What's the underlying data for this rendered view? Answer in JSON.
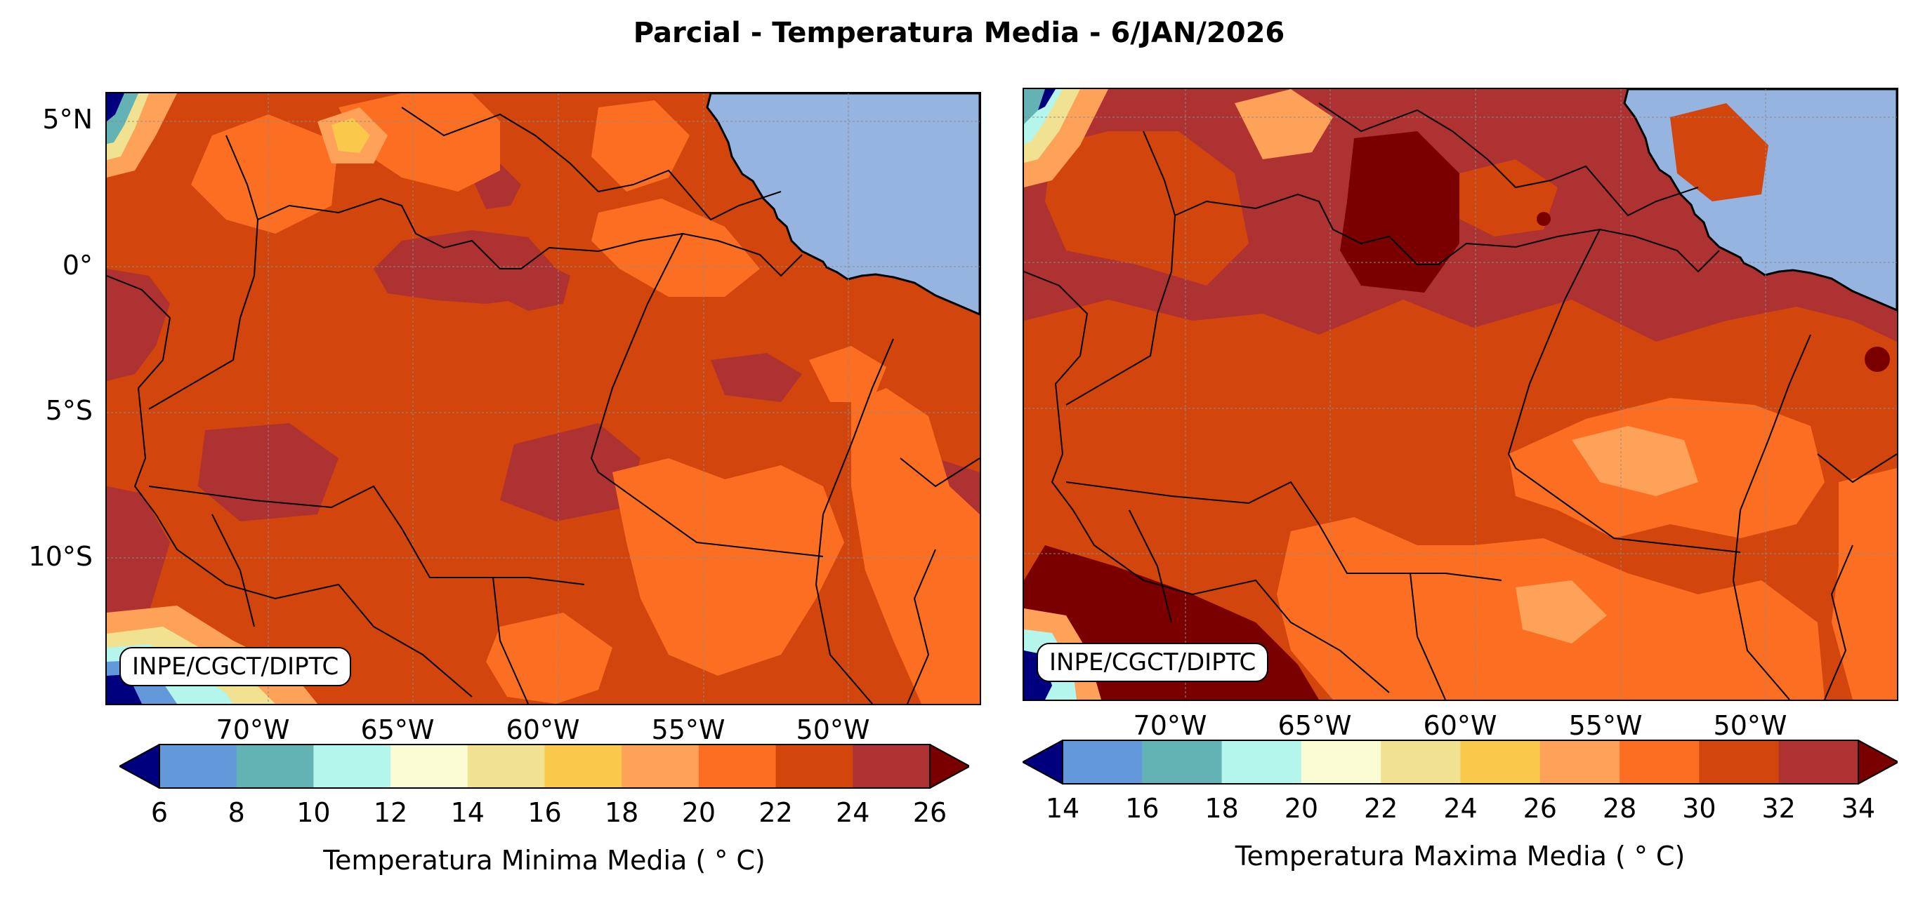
{
  "title": "Parcial - Temperatura Media - 6/JAN/2026",
  "credit": "INPE/CGCT/DIPTC",
  "lat_labels": [
    "5°N",
    "0°",
    "5°S",
    "10°S"
  ],
  "lon_labels": [
    "70°W",
    "65°W",
    "60°W",
    "55°W",
    "50°W"
  ],
  "colors": {
    "ocean": "#95b4e0",
    "frame": "#000000",
    "grid": "#8a8a8a"
  },
  "panels": [
    {
      "colorbar_label": "Temperatura Minima Media ($^\\circ$C)",
      "colorbar_display": "Temperatura Minima Media ( ° C)",
      "ticks": [
        "6",
        "8",
        "10",
        "12",
        "14",
        "16",
        "18",
        "20",
        "22",
        "24",
        "26"
      ],
      "dominant_range": "22-24",
      "secondary_range": "20-22"
    },
    {
      "colorbar_label": "Temperatura Maxima Media ($^\\circ$C)",
      "colorbar_display": "Temperatura Maxima Media ( ° C)",
      "ticks": [
        "14",
        "16",
        "18",
        "20",
        "22",
        "24",
        "26",
        "28",
        "30",
        "32",
        "34"
      ],
      "dominant_range": "30-32",
      "secondary_range": "32-34"
    }
  ],
  "colormap": [
    "#00007f",
    "#6399db",
    "#63b3b4",
    "#b4f5ec",
    "#fbfcd4",
    "#f0e291",
    "#fac94c",
    "#fea159",
    "#fc6f22",
    "#d2450c",
    "#ae3232",
    "#7a0000"
  ]
}
